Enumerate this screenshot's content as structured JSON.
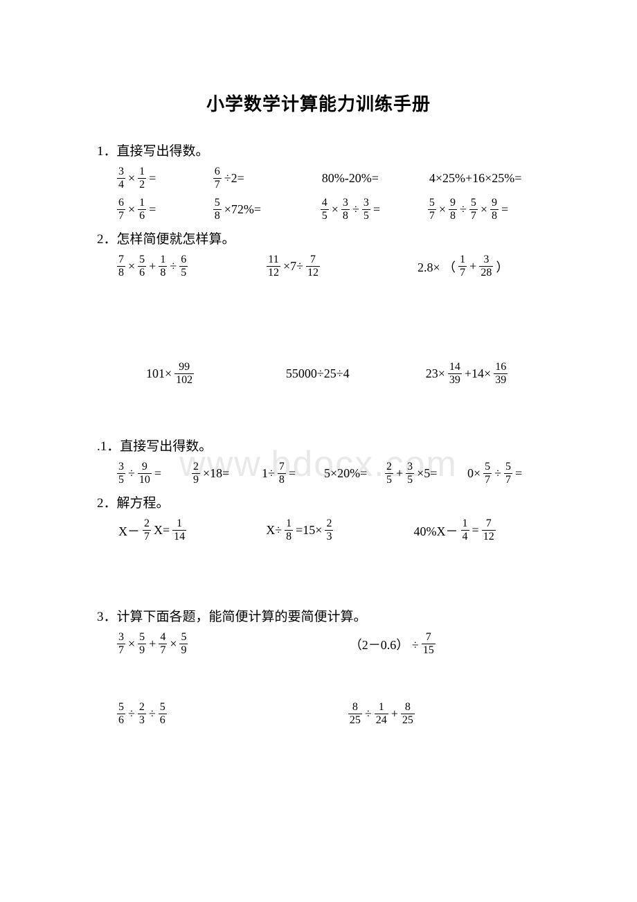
{
  "page": {
    "background_color": "#ffffff",
    "text_color": "#000000",
    "title_fontsize": 26,
    "body_fontsize": 19,
    "math_fontsize": 18,
    "frac_fontsize": 16,
    "watermark_color": "#e9e9e9",
    "watermark_fontsize": 52
  },
  "title": "小学数学计算能力训练手册",
  "watermark": "www.bdocx.com",
  "sections": [
    {
      "heading": "1．直接写出得数。",
      "rows": [
        {
          "layout": "4col",
          "widths": [
            170,
            190,
            190,
            200
          ],
          "items": [
            {
              "tokens": [
                {
                  "t": "frac",
                  "n": "3",
                  "d": "4"
                },
                {
                  "t": "text",
                  "v": " ×"
                },
                {
                  "t": "frac",
                  "n": "1",
                  "d": "2"
                },
                {
                  "t": "text",
                  "v": " ="
                }
              ]
            },
            {
              "tokens": [
                {
                  "t": "frac",
                  "n": "6",
                  "d": "7"
                },
                {
                  "t": "text",
                  "v": " ÷2="
                }
              ]
            },
            {
              "tokens": [
                {
                  "t": "text",
                  "v": "80%-20%="
                }
              ]
            },
            {
              "tokens": [
                {
                  "t": "text",
                  "v": "4×25%+16×25%="
                }
              ]
            }
          ]
        },
        {
          "layout": "4col",
          "widths": [
            170,
            190,
            190,
            200
          ],
          "items": [
            {
              "tokens": [
                {
                  "t": "frac",
                  "n": "6",
                  "d": "7"
                },
                {
                  "t": "text",
                  "v": " ×"
                },
                {
                  "t": "frac",
                  "n": "1",
                  "d": "6"
                },
                {
                  "t": "text",
                  "v": " ="
                }
              ]
            },
            {
              "tokens": [
                {
                  "t": "frac",
                  "n": "5",
                  "d": "8"
                },
                {
                  "t": "text",
                  "v": " ×72%="
                }
              ]
            },
            {
              "tokens": [
                {
                  "t": "frac",
                  "n": "4",
                  "d": "5"
                },
                {
                  "t": "text",
                  "v": " ×"
                },
                {
                  "t": "frac",
                  "n": "3",
                  "d": "8"
                },
                {
                  "t": "text",
                  "v": " ÷"
                },
                {
                  "t": "frac",
                  "n": "3",
                  "d": "5"
                },
                {
                  "t": "text",
                  "v": " ="
                }
              ]
            },
            {
              "tokens": [
                {
                  "t": "frac",
                  "n": "5",
                  "d": "7"
                },
                {
                  "t": "text",
                  "v": " ×"
                },
                {
                  "t": "frac",
                  "n": "9",
                  "d": "8"
                },
                {
                  "t": "text",
                  "v": " ÷"
                },
                {
                  "t": "frac",
                  "n": "5",
                  "d": "7"
                },
                {
                  "t": "text",
                  "v": " ×"
                },
                {
                  "t": "frac",
                  "n": "9",
                  "d": "8"
                },
                {
                  "t": "text",
                  "v": " ="
                }
              ]
            }
          ]
        }
      ]
    },
    {
      "heading": "2．怎样简便就怎样算。",
      "rows": [
        {
          "layout": "3col",
          "widths": [
            240,
            240,
            200
          ],
          "items": [
            {
              "tokens": [
                {
                  "t": "frac",
                  "n": "7",
                  "d": "8"
                },
                {
                  "t": "text",
                  "v": " ×"
                },
                {
                  "t": "frac",
                  "n": "5",
                  "d": "6"
                },
                {
                  "t": "text",
                  "v": " +"
                },
                {
                  "t": "frac",
                  "n": "1",
                  "d": "8"
                },
                {
                  "t": "text",
                  "v": " ÷"
                },
                {
                  "t": "frac",
                  "n": "6",
                  "d": "5"
                }
              ]
            },
            {
              "tokens": [
                {
                  "t": "frac",
                  "n": "11",
                  "d": "12"
                },
                {
                  "t": "text",
                  "v": " ×7÷"
                },
                {
                  "t": "frac",
                  "n": "7",
                  "d": "12"
                }
              ]
            },
            {
              "tokens": [
                {
                  "t": "text",
                  "v": "2.8× （"
                },
                {
                  "t": "frac",
                  "n": "1",
                  "d": "7"
                },
                {
                  "t": "text",
                  "v": " +"
                },
                {
                  "t": "frac",
                  "n": "3",
                  "d": "28"
                },
                {
                  "t": "text",
                  "v": " ）"
                }
              ]
            }
          ]
        },
        {
          "layout": "spacer",
          "height": "gap-lg"
        },
        {
          "layout": "3col",
          "widths": [
            240,
            240,
            200
          ],
          "indent": 40,
          "items": [
            {
              "tokens": [
                {
                  "t": "text",
                  "v": "101×"
                },
                {
                  "t": "frac",
                  "n": "99",
                  "d": "102"
                }
              ]
            },
            {
              "tokens": [
                {
                  "t": "text",
                  "v": "55000÷25÷4"
                }
              ]
            },
            {
              "tokens": [
                {
                  "t": "text",
                  "v": "23×"
                },
                {
                  "t": "frac",
                  "n": "14",
                  "d": "39"
                },
                {
                  "t": "text",
                  "v": " +14×"
                },
                {
                  "t": "frac",
                  "n": "16",
                  "d": "39"
                }
              ]
            }
          ]
        },
        {
          "layout": "spacer",
          "height": "gap-md"
        }
      ]
    },
    {
      "heading": ".1．直接写出得数。",
      "rows": [
        {
          "layout": "6col",
          "widths": [
            120,
            110,
            100,
            100,
            130,
            120
          ],
          "items": [
            {
              "tokens": [
                {
                  "t": "frac",
                  "n": "3",
                  "d": "5"
                },
                {
                  "t": "text",
                  "v": "÷"
                },
                {
                  "t": "frac",
                  "n": "9",
                  "d": "10"
                },
                {
                  "t": "text",
                  "v": "="
                }
              ]
            },
            {
              "tokens": [
                {
                  "t": "frac",
                  "n": "2",
                  "d": "9"
                },
                {
                  "t": "text",
                  "v": "×18="
                }
              ]
            },
            {
              "tokens": [
                {
                  "t": "text",
                  "v": "1÷"
                },
                {
                  "t": "frac",
                  "n": "7",
                  "d": "8"
                },
                {
                  "t": "text",
                  "v": " ="
                }
              ]
            },
            {
              "tokens": [
                {
                  "t": "text",
                  "v": "5×20%="
                }
              ]
            },
            {
              "tokens": [
                {
                  "t": "frac",
                  "n": "2",
                  "d": "5"
                },
                {
                  "t": "text",
                  "v": "+"
                },
                {
                  "t": "frac",
                  "n": "3",
                  "d": "5"
                },
                {
                  "t": "text",
                  "v": "×5="
                }
              ]
            },
            {
              "tokens": [
                {
                  "t": "text",
                  "v": "0×"
                },
                {
                  "t": "frac",
                  "n": "5",
                  "d": "7"
                },
                {
                  "t": "text",
                  "v": "÷"
                },
                {
                  "t": "frac",
                  "n": "5",
                  "d": "7"
                },
                {
                  "t": "text",
                  "v": "="
                }
              ]
            }
          ]
        }
      ]
    },
    {
      "heading": "2．解方程。",
      "rows": [
        {
          "layout": "3col",
          "widths": [
            230,
            230,
            200
          ],
          "items": [
            {
              "tokens": [
                {
                  "t": "text",
                  "v": "X－"
                },
                {
                  "t": "frac",
                  "n": "2",
                  "d": "7"
                },
                {
                  "t": "text",
                  "v": " X="
                },
                {
                  "t": "frac",
                  "n": "1",
                  "d": "14"
                }
              ]
            },
            {
              "tokens": [
                {
                  "t": "text",
                  "v": "X÷"
                },
                {
                  "t": "frac",
                  "n": "1",
                  "d": "8"
                },
                {
                  "t": "text",
                  "v": " =15×"
                },
                {
                  "t": "frac",
                  "n": "2",
                  "d": "3"
                }
              ]
            },
            {
              "tokens": [
                {
                  "t": "text",
                  "v": "40%X－"
                },
                {
                  "t": "frac",
                  "n": "1",
                  "d": "4"
                },
                {
                  "t": "text",
                  "v": " ="
                },
                {
                  "t": "frac",
                  "n": "7",
                  "d": "12"
                }
              ]
            }
          ]
        },
        {
          "layout": "spacer",
          "height": "gap-md"
        },
        {
          "layout": "spacer",
          "height": "gap-sm"
        }
      ]
    },
    {
      "heading": "3．计算下面各题，能简便计算的要简便计算。",
      "rows": [
        {
          "layout": "2col",
          "widths": [
            360,
            300
          ],
          "items": [
            {
              "tokens": [
                {
                  "t": "frac",
                  "n": "3",
                  "d": "7"
                },
                {
                  "t": "text",
                  "v": "×"
                },
                {
                  "t": "frac",
                  "n": "5",
                  "d": "9"
                },
                {
                  "t": "text",
                  "v": "+"
                },
                {
                  "t": "frac",
                  "n": "4",
                  "d": "7"
                },
                {
                  "t": "text",
                  "v": "×"
                },
                {
                  "t": "frac",
                  "n": "5",
                  "d": "9"
                }
              ]
            },
            {
              "tokens": [
                {
                  "t": "text",
                  "v": "（2－0.6） ÷"
                },
                {
                  "t": "frac",
                  "n": "7",
                  "d": "15"
                }
              ]
            }
          ]
        },
        {
          "layout": "spacer",
          "height": "gap-md"
        },
        {
          "layout": "2col",
          "widths": [
            360,
            300
          ],
          "indent": 0,
          "items": [
            {
              "tokens": [
                {
                  "t": "frac",
                  "n": "5",
                  "d": "6"
                },
                {
                  "t": "text",
                  "v": " ÷"
                },
                {
                  "t": "frac",
                  "n": "2",
                  "d": "3"
                },
                {
                  "t": "text",
                  "v": "÷"
                },
                {
                  "t": "frac",
                  "n": "5",
                  "d": "6"
                }
              ]
            },
            {
              "tokens": [
                {
                  "t": "frac",
                  "n": "8",
                  "d": "25"
                },
                {
                  "t": "text",
                  "v": "÷"
                },
                {
                  "t": "frac",
                  "n": "1",
                  "d": "24"
                },
                {
                  "t": "text",
                  "v": "+"
                },
                {
                  "t": "frac",
                  "n": "8",
                  "d": "25"
                }
              ]
            }
          ]
        }
      ]
    }
  ]
}
